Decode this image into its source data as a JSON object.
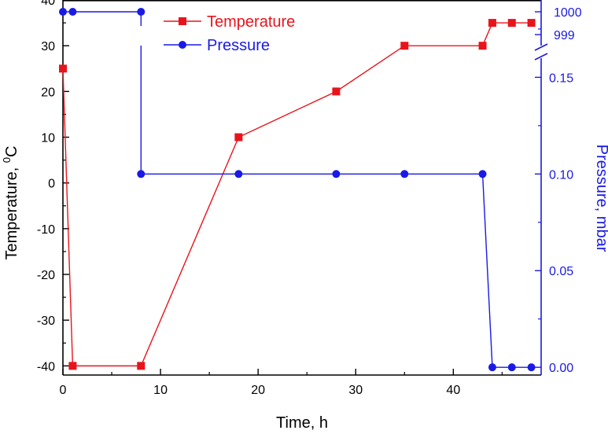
{
  "chart_data": {
    "type": "line",
    "xlabel": "Time, h",
    "ylabel_left_main": "Temperature, ",
    "ylabel_left_sup": "0",
    "ylabel_left_unit": "C",
    "ylabel_right": "Pressure, mbar",
    "xlim": [
      0,
      49
    ],
    "ylim_left": [
      -42,
      40
    ],
    "ylim_right_lower": [
      -0.004,
      0.19
    ],
    "ylim_right_upper_ticks": [
      999,
      1000
    ],
    "x_ticks": [
      0,
      10,
      20,
      30,
      40
    ],
    "x_tick_labels": [
      "0",
      "10",
      "20",
      "30",
      "40"
    ],
    "y_left_ticks": [
      -40,
      -30,
      -20,
      -10,
      0,
      10,
      20,
      30,
      40
    ],
    "y_left_tick_labels": [
      "-40",
      "-30",
      "-20",
      "-10",
      "0",
      "10",
      "20",
      "30",
      "40"
    ],
    "y_right_ticks": [
      0.0,
      0.05,
      0.1,
      0.15
    ],
    "y_right_tick_labels": [
      "0.00",
      "0.05",
      "0.10",
      "0.15"
    ],
    "y_right_upper_tick_labels": [
      "999",
      "1000"
    ],
    "axis_break": "right axis broken between 0.19 and 999",
    "legend": "top-center",
    "grid": false,
    "colors": {
      "temperature": "#e8141c",
      "pressure": "#1a1ae6",
      "left_axis": "#000000",
      "right_axis": "#1a1ae6"
    },
    "series": [
      {
        "name": "Temperature",
        "axis": "left",
        "marker": "square",
        "x": [
          0,
          1,
          8,
          18,
          28,
          35,
          43,
          44,
          46,
          48
        ],
        "y": [
          25,
          -40,
          -40,
          10,
          20,
          30,
          30,
          35,
          35,
          35
        ]
      },
      {
        "name": "Pressure",
        "axis": "right",
        "marker": "circle",
        "x": [
          0,
          1,
          8,
          8,
          18,
          28,
          35,
          43,
          44,
          46,
          48
        ],
        "y": [
          1000,
          1000,
          1000,
          0.1,
          0.1,
          0.1,
          0.1,
          0.1,
          0.0,
          0.0,
          0.0
        ]
      }
    ]
  }
}
